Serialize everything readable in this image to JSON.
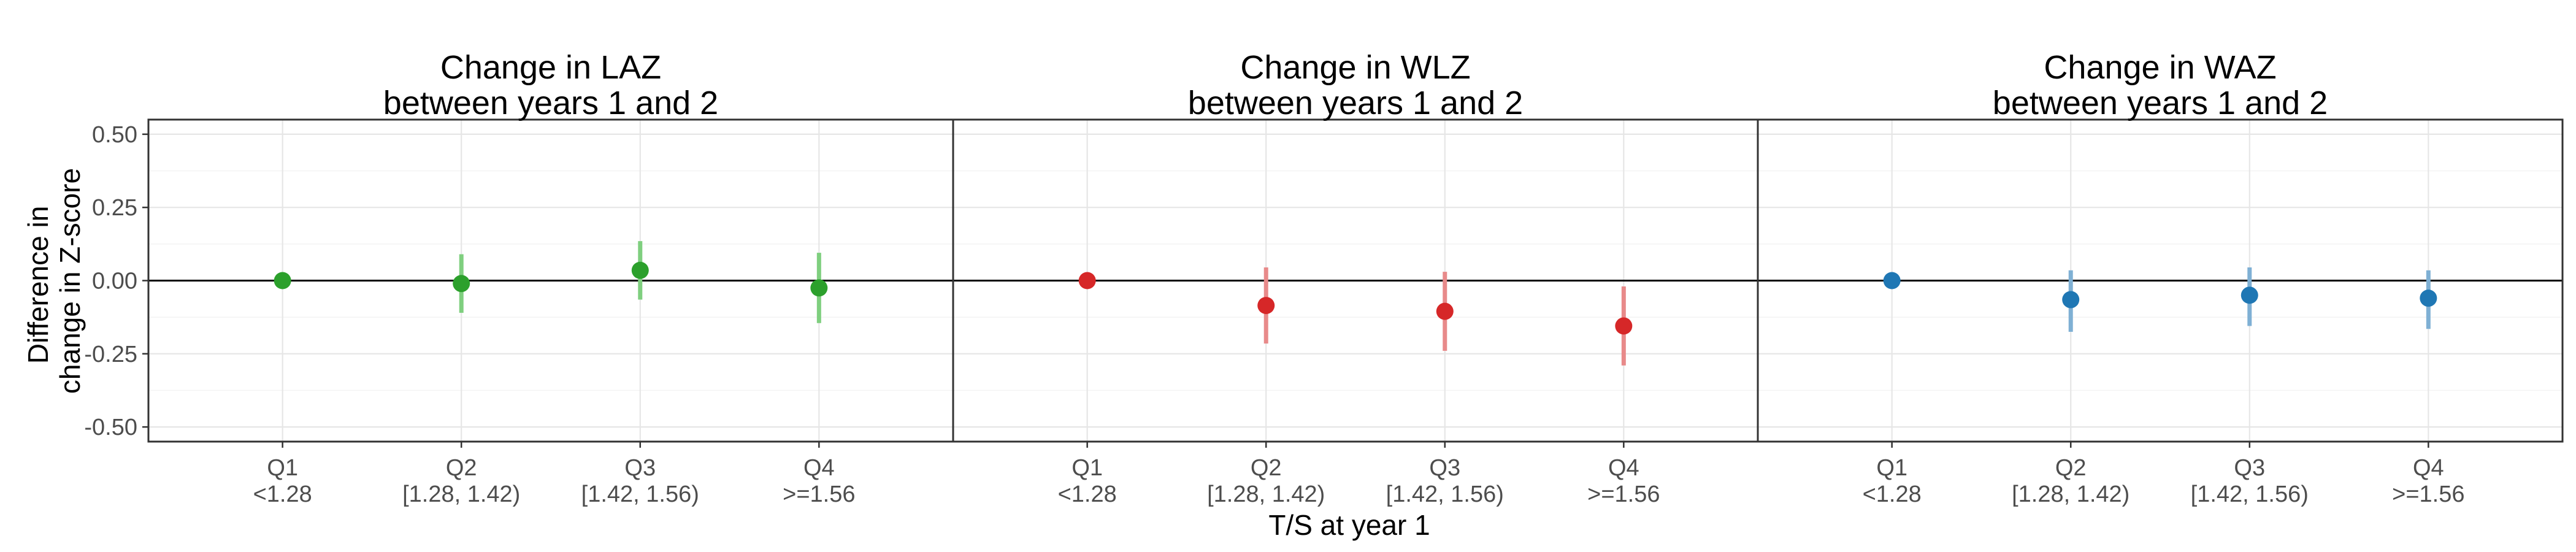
{
  "chart_data": {
    "type": "scatter",
    "subtype": "point-range",
    "xlabel": "T/S at year 1",
    "ylabel_lines": [
      "Difference in",
      "change in Z-score"
    ],
    "ylim": [
      -0.55,
      0.55
    ],
    "y_ticks": [
      "0.50",
      "0.25",
      "0.00",
      "-0.25",
      "-0.50"
    ],
    "y_tick_values": [
      0.5,
      0.25,
      0,
      -0.25,
      -0.5
    ],
    "reference_line": 0,
    "grid": true,
    "legend": "none",
    "categories": [
      {
        "line1": "Q1",
        "line2": "<1.28"
      },
      {
        "line1": "Q2",
        "line2": "[1.28, 1.42)"
      },
      {
        "line1": "Q3",
        "line2": "[1.42, 1.56)"
      },
      {
        "line1": "Q4",
        "line2": ">=1.56"
      }
    ],
    "panels": [
      {
        "title_line1": "Change in LAZ",
        "title_line2": "between years 1 and 2",
        "color": "#2ca02c",
        "bar_color": "#7fcf7f",
        "points": [
          {
            "category": "Q1",
            "y": 0.0,
            "lower": 0.0,
            "upper": 0.0
          },
          {
            "category": "Q2",
            "y": -0.01,
            "lower": -0.11,
            "upper": 0.09
          },
          {
            "category": "Q3",
            "y": 0.035,
            "lower": -0.065,
            "upper": 0.135
          },
          {
            "category": "Q4",
            "y": -0.025,
            "lower": -0.145,
            "upper": 0.095
          }
        ]
      },
      {
        "title_line1": "Change in WLZ",
        "title_line2": "between years 1 and 2",
        "color": "#d62728",
        "bar_color": "#e88a8a",
        "points": [
          {
            "category": "Q1",
            "y": 0.0,
            "lower": 0.0,
            "upper": 0.0
          },
          {
            "category": "Q2",
            "y": -0.085,
            "lower": -0.215,
            "upper": 0.045
          },
          {
            "category": "Q3",
            "y": -0.105,
            "lower": -0.24,
            "upper": 0.03
          },
          {
            "category": "Q4",
            "y": -0.155,
            "lower": -0.29,
            "upper": -0.02
          }
        ]
      },
      {
        "title_line1": "Change in WAZ",
        "title_line2": "between years 1 and 2",
        "color": "#1f77b4",
        "bar_color": "#7fb0d4",
        "points": [
          {
            "category": "Q1",
            "y": 0.0,
            "lower": 0.0,
            "upper": 0.0
          },
          {
            "category": "Q2",
            "y": -0.065,
            "lower": -0.175,
            "upper": 0.035
          },
          {
            "category": "Q3",
            "y": -0.05,
            "lower": -0.155,
            "upper": 0.045
          },
          {
            "category": "Q4",
            "y": -0.06,
            "lower": -0.165,
            "upper": 0.035
          }
        ]
      }
    ]
  }
}
